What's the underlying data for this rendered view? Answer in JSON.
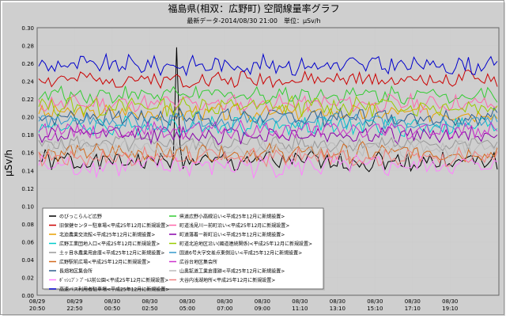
{
  "chart_data": {
    "type": "line",
    "title": "福島県(相双：広野町) 空間線量率グラフ",
    "subtitle": "最新データ-2014/08/30 21:00　単位：μSv/h",
    "ylabel": "μSv/h",
    "xlabel": "",
    "ylim": [
      0.0,
      0.3
    ],
    "yticks": [
      "0.00",
      "0.02",
      "0.04",
      "0.06",
      "0.08",
      "0.10",
      "0.12",
      "0.14",
      "0.16",
      "0.18",
      "0.20",
      "0.22",
      "0.24",
      "0.26",
      "0.28",
      "0.30"
    ],
    "grid": true,
    "legend_position": "bottom-left",
    "x_ticks": [
      {
        "date": "08/29",
        "time": "20:50"
      },
      {
        "date": "08/29",
        "time": "22:50"
      },
      {
        "date": "08/30",
        "time": "00:50"
      },
      {
        "date": "08/30",
        "time": "02:50"
      },
      {
        "date": "08/30",
        "time": "05:00"
      },
      {
        "date": "08/30",
        "time": "07:00"
      },
      {
        "date": "08/30",
        "time": "09:00"
      },
      {
        "date": "08/30",
        "time": "11:10"
      },
      {
        "date": "08/30",
        "time": "13:10"
      },
      {
        "date": "08/30",
        "time": "15:10"
      },
      {
        "date": "08/30",
        "time": "17:10"
      },
      {
        "date": "08/30",
        "time": "19:10"
      }
    ],
    "series": [
      {
        "name": "のびっこらんど広野",
        "color": "#000000",
        "mean": 0.15,
        "amp": 0.01,
        "spike_index": 43,
        "spike_value": 0.278
      },
      {
        "name": "旧保健センター駐車場<平成25年12月に新規設置>",
        "color": "#cc0000",
        "mean": 0.242,
        "amp": 0.008
      },
      {
        "name": "北迫農業交流館<平成25年12月に新規設置>",
        "color": "#e8a000",
        "mean": 0.205,
        "amp": 0.008
      },
      {
        "name": "広野工業団地入口<平成25年12月に新規設置>",
        "color": "#00cccc",
        "mean": 0.19,
        "amp": 0.009
      },
      {
        "name": "土ヶ目水農業用倉庫<平成25年12月に新規設置>",
        "color": "#999999",
        "mean": 0.17,
        "amp": 0.008
      },
      {
        "name": "広野駅前広場<平成25年12月に新規設置>",
        "color": "#d2691e",
        "mean": 0.16,
        "amp": 0.009
      },
      {
        "name": "長畑地区集会所",
        "color": "#2e5e8e",
        "mean": 0.2,
        "amp": 0.008
      },
      {
        "name": "ﾎﾞｯｼｭﾌﾞﾝ ﾌﾟｰﾙｽ前公園<平成25年12月に新規設置>",
        "color": "#ff80ff",
        "mean": 0.145,
        "amp": 0.01
      },
      {
        "name": "高速バス利用者駐車場<平成25年12月に新規設置>",
        "color": "#0000cc",
        "mean": 0.258,
        "amp": 0.009
      },
      {
        "name": "県道広野小高線沿い<平成25年12月に新規設置>",
        "color": "#33cc33",
        "mean": 0.225,
        "amp": 0.008
      },
      {
        "name": "町道浅見川ー前町沿い<平成25年12月に新規設置>",
        "color": "#ff66aa",
        "mean": 0.215,
        "amp": 0.008
      },
      {
        "name": "町道落着ー新町沿い<平成25年12月に新規設置>",
        "color": "#8800aa",
        "mean": 0.18,
        "amp": 0.008
      },
      {
        "name": "町道北迫地区沿い(國道連続関係)<平成25年12月に新規設置>",
        "color": "#99cc00",
        "mean": 0.212,
        "amp": 0.009
      },
      {
        "name": "国道6号大字交差点東側沿い<平成25年12月に新規設置>",
        "color": "#3399cc",
        "mean": 0.195,
        "amp": 0.008
      },
      {
        "name": "広谷台地区集会所",
        "color": "#cc33cc",
        "mean": 0.185,
        "amp": 0.008
      },
      {
        "name": "山奥鉱道工業倉庫跡<平成25年12月に新規設置>",
        "color": "#bbbbbb",
        "mean": 0.165,
        "amp": 0.008
      },
      {
        "name": "大谷内浅湖地所<平成25年12月に新規設置>",
        "color": "#f08080",
        "mean": 0.155,
        "amp": 0.008
      }
    ],
    "points": 144
  }
}
